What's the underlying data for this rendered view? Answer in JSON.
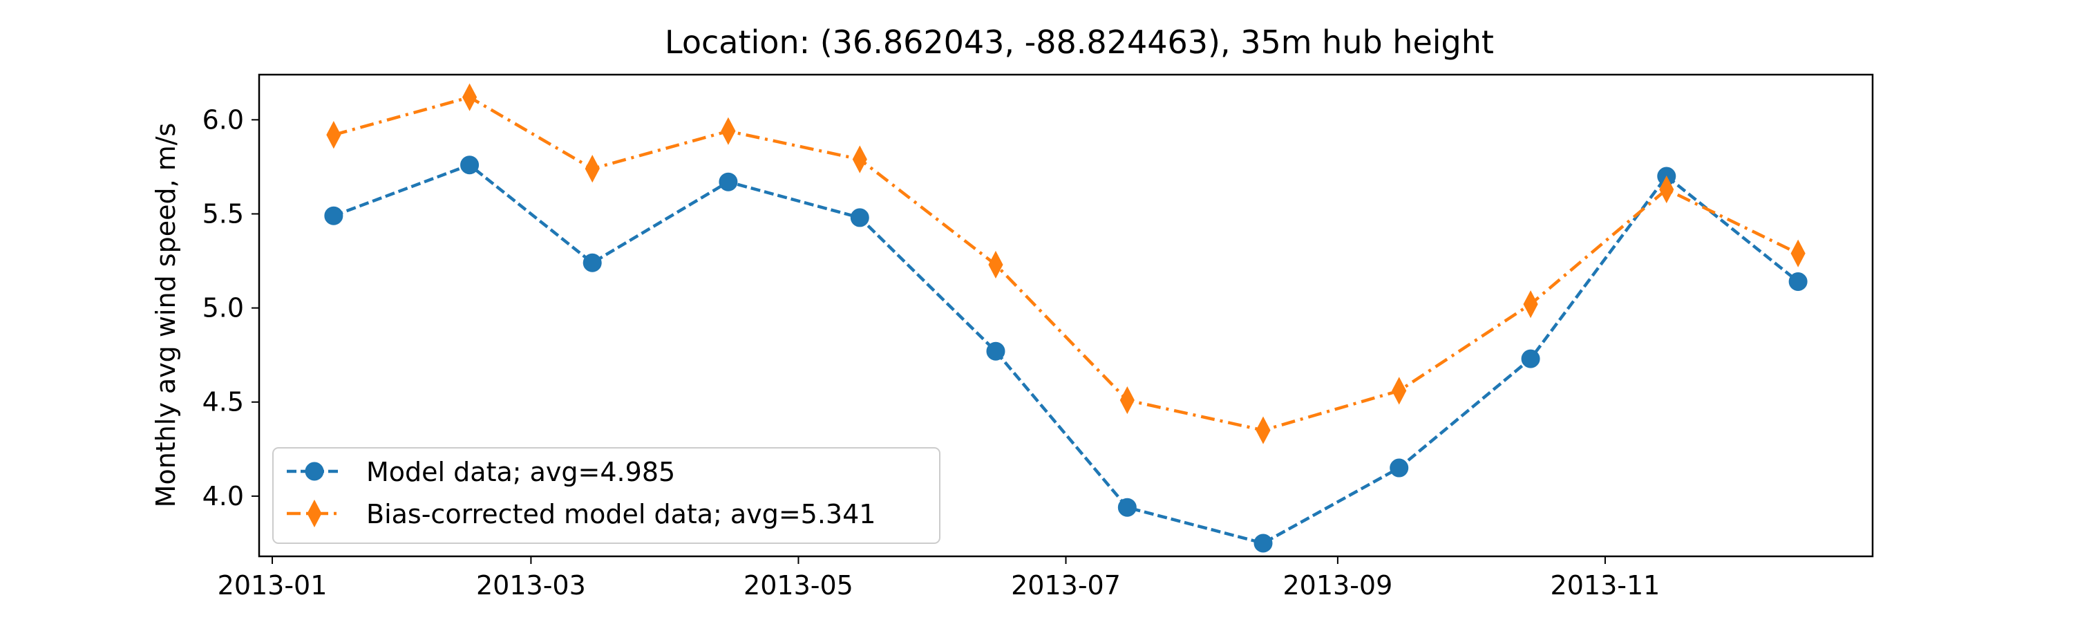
{
  "chart_data": {
    "type": "line",
    "title": "Location: (36.862043, -88.824463), 35m hub height",
    "xlabel": "",
    "ylabel": "Monthly avg wind speed, m/s",
    "x": [
      "2013-01-15",
      "2013-02-15",
      "2013-03-15",
      "2013-04-15",
      "2013-05-15",
      "2013-06-15",
      "2013-07-15",
      "2013-08-15",
      "2013-09-15",
      "2013-10-15",
      "2013-11-15",
      "2013-12-15"
    ],
    "x_ticks": [
      "2013-01",
      "2013-03",
      "2013-05",
      "2013-07",
      "2013-09",
      "2013-11"
    ],
    "xlim": [
      "2012-12-29",
      "2014-01-01"
    ],
    "y_ticks": [
      "4.0",
      "4.5",
      "5.0",
      "5.5",
      "6.0"
    ],
    "ylim": [
      3.68,
      6.24
    ],
    "grid": false,
    "legend_position": "lower-left",
    "series": [
      {
        "name": "Model data; avg=4.985",
        "values": [
          5.49,
          5.76,
          5.24,
          5.67,
          5.48,
          4.77,
          3.94,
          3.75,
          4.15,
          4.73,
          5.7,
          5.14
        ],
        "color": "#1f77b4",
        "marker": "circle",
        "line_style": "dashed"
      },
      {
        "name": "Bias-corrected model data; avg=5.341",
        "values": [
          5.92,
          6.12,
          5.74,
          5.94,
          5.79,
          5.23,
          4.51,
          4.35,
          4.56,
          5.02,
          5.63,
          5.29
        ],
        "color": "#ff7f0e",
        "marker": "thin-diamond",
        "line_style": "dash-dot"
      }
    ]
  }
}
